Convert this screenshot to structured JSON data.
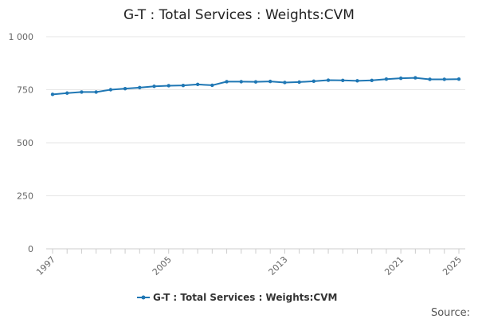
{
  "chart_data": {
    "type": "line",
    "title": "G-T : Total Services : Weights:CVM",
    "xlabel": "",
    "ylabel": "",
    "ylim": [
      0,
      1000
    ],
    "yticks": [
      0,
      250,
      500,
      750,
      1000
    ],
    "ytick_labels": [
      "0",
      "250",
      "500",
      "750",
      "1 000"
    ],
    "xlim": [
      1997,
      2025
    ],
    "xtick_labels": [
      "1997",
      "2005",
      "2013",
      "2021",
      "2025"
    ],
    "x": [
      1997,
      1998,
      1999,
      2000,
      2001,
      2002,
      2003,
      2004,
      2005,
      2006,
      2007,
      2008,
      2009,
      2010,
      2011,
      2012,
      2013,
      2014,
      2015,
      2016,
      2017,
      2018,
      2019,
      2020,
      2021,
      2022,
      2023,
      2024,
      2025
    ],
    "series": [
      {
        "name": "G-T : Total Services : Weights:CVM",
        "color": "#1f77b4",
        "values": [
          728,
          734,
          739,
          739,
          750,
          755,
          760,
          766,
          769,
          770,
          775,
          771,
          788,
          788,
          787,
          789,
          784,
          786,
          790,
          795,
          794,
          792,
          794,
          800,
          804,
          806,
          799,
          799,
          800
        ]
      }
    ],
    "legend_position": "bottom",
    "source_label": "Source:"
  }
}
